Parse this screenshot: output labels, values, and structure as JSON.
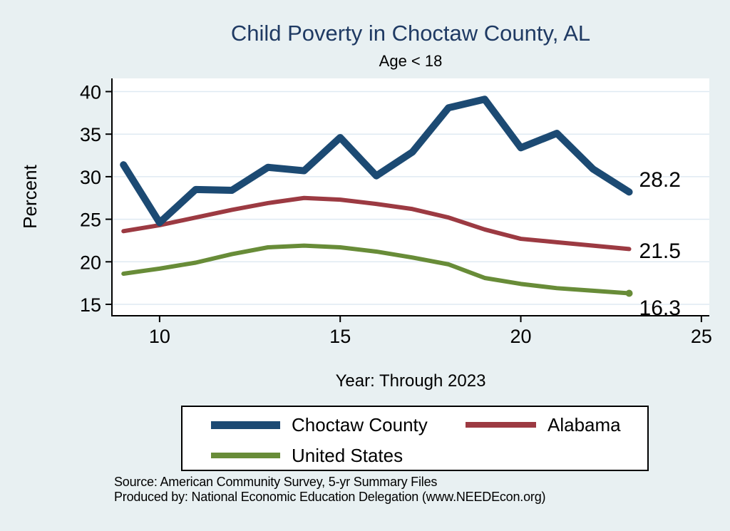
{
  "colors": {
    "background": "#e8f0f2",
    "plot_background": "#ffffff",
    "title": "#1f3a63",
    "grid": "#dfeaf2",
    "axis": "#000000"
  },
  "notes": {
    "source": "Source: American Community Survey, 5-yr Summary Files",
    "produced_by": "Produced by: National Economic Education Delegation (www.NEEDEcon.org)"
  },
  "chart_data": {
    "type": "line",
    "title": "Child Poverty in Choctaw County, AL",
    "subtitle": "Age < 18",
    "xlabel": "Year: Through 2023",
    "ylabel": "Percent",
    "x": [
      9,
      10,
      11,
      12,
      13,
      14,
      15,
      16,
      17,
      18,
      19,
      20,
      21,
      22,
      23
    ],
    "series": [
      {
        "name": "Choctaw County",
        "color": "#1c4a73",
        "stroke_width": 10,
        "end_label": "28.2",
        "label_dy": -16,
        "end_dot": false,
        "values": [
          31.4,
          24.6,
          28.5,
          28.4,
          31.1,
          30.7,
          34.6,
          30.1,
          32.9,
          38.1,
          39.1,
          33.4,
          35.1,
          30.9,
          28.2
        ]
      },
      {
        "name": "Alabama",
        "color": "#9c3a42",
        "stroke_width": 6,
        "end_label": "21.5",
        "label_dy": 4,
        "end_dot": false,
        "values": [
          23.6,
          24.3,
          25.2,
          26.1,
          26.9,
          27.5,
          27.3,
          26.8,
          26.2,
          25.2,
          23.8,
          22.7,
          22.3,
          21.9,
          21.5
        ]
      },
      {
        "name": "United States",
        "color": "#688c38",
        "stroke_width": 6,
        "end_label": "16.3",
        "label_dy": 22,
        "end_dot": true,
        "values": [
          18.6,
          19.2,
          19.9,
          20.9,
          21.7,
          21.9,
          21.7,
          21.2,
          20.5,
          19.7,
          18.1,
          17.4,
          16.9,
          16.6,
          16.3
        ]
      }
    ],
    "xticks": [
      10,
      15,
      20,
      25
    ],
    "yticks": [
      15,
      20,
      25,
      30,
      35,
      40
    ],
    "xlim": [
      8.68,
      25.22
    ],
    "ylim": [
      13.66,
      41.55
    ],
    "grid": "horizontal",
    "legend_position": "bottom"
  }
}
